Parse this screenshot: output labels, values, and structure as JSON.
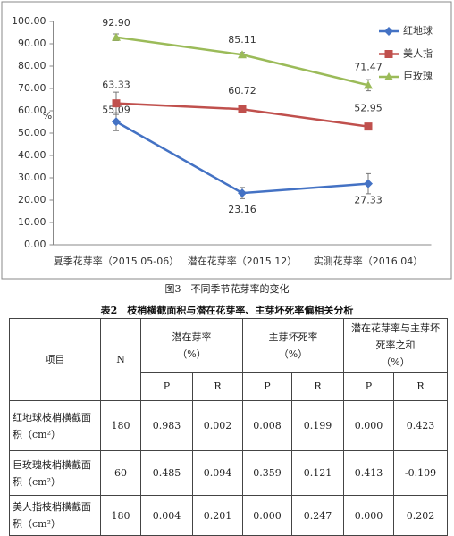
{
  "chart_data": {
    "type": "line",
    "y_label": "%",
    "categories": [
      "夏季花芽率（2015.05-06）",
      "潜在花芽率（2015.12）",
      "实测花芽率（2016.04）"
    ],
    "series": [
      {
        "name": "红地球",
        "color": "#4472c4",
        "marker": "diamond",
        "values": [
          55.09,
          23.16,
          27.33
        ],
        "value_labels": [
          "55.09",
          "23.16",
          "27.33"
        ],
        "errors": [
          4,
          2.5,
          4.5
        ]
      },
      {
        "name": "美人指",
        "color": "#c0504d",
        "marker": "square",
        "values": [
          63.33,
          60.72,
          52.95
        ],
        "value_labels": [
          "63.33",
          "60.72",
          "52.95"
        ],
        "errors": [
          5,
          1,
          1
        ]
      },
      {
        "name": "巨玫瑰",
        "color": "#9bbb59",
        "marker": "triangle",
        "values": [
          92.9,
          85.11,
          71.47
        ],
        "value_labels": [
          "92.90",
          "85.11",
          "71.47"
        ],
        "errors": [
          1.5,
          1,
          2.5
        ]
      }
    ],
    "ylim": [
      0,
      100
    ],
    "yticks": [
      {
        "value": 0,
        "label": "0.00"
      },
      {
        "value": 10,
        "label": "10.00"
      },
      {
        "value": 20,
        "label": "20.00"
      },
      {
        "value": 30,
        "label": "30.00"
      },
      {
        "value": 40,
        "label": "40.00"
      },
      {
        "value": 50,
        "label": "50.00"
      },
      {
        "value": 60,
        "label": "60.00"
      },
      {
        "value": 70,
        "label": "70.00"
      },
      {
        "value": 80,
        "label": "80.00"
      },
      {
        "value": 90,
        "label": "90.00"
      },
      {
        "value": 100,
        "label": "100.00"
      }
    ],
    "grid": false,
    "legend": "right"
  },
  "figure_caption": "图3　不同季节花芽率的变化",
  "table": {
    "title": "表2　枝梢横截面积与潜在花芽率、主芽坏死率偏相关分析",
    "header": {
      "item": "项目",
      "n": "N",
      "groups": [
        {
          "name": "潜在芽率",
          "unit": "（%）"
        },
        {
          "name": "主芽坏死率",
          "unit": "（%）"
        },
        {
          "name": "潜在花芽率与主芽坏死率之和",
          "unit": "（%）"
        }
      ],
      "sub": [
        "P",
        "R",
        "P",
        "R",
        "P",
        "R"
      ]
    },
    "rows": [
      [
        "红地球枝梢横截面积（cm²）",
        "180",
        "0.983",
        "0.002",
        "0.008",
        "0.199",
        "0.000",
        "0.423"
      ],
      [
        "巨玫瑰枝梢横截面积（cm²）",
        "60",
        "0.485",
        "0.094",
        "0.359",
        "0.121",
        "0.413",
        "-0.109"
      ],
      [
        "美人指枝梢横截面积（cm²）",
        "180",
        "0.004",
        "0.201",
        "0.000",
        "0.247",
        "0.000",
        "0.202"
      ]
    ]
  }
}
